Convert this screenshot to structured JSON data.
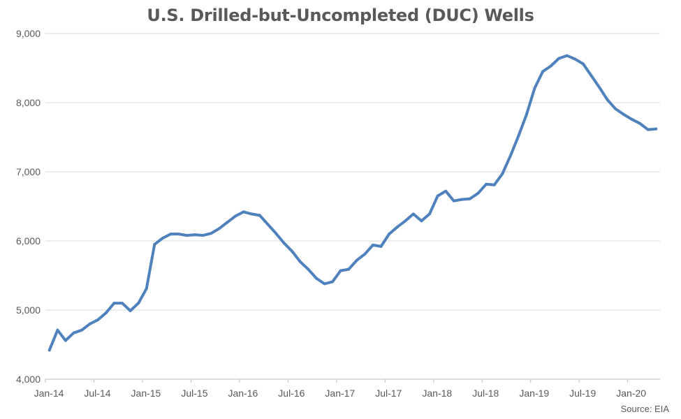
{
  "chart_data": {
    "type": "line",
    "title": "U.S. Drilled-but-Uncompleted (DUC) Wells",
    "source": "Source: EIA",
    "ylim": [
      4000,
      9000
    ],
    "y_ticks": [
      4000,
      5000,
      6000,
      7000,
      8000,
      9000
    ],
    "y_tick_labels": [
      "4,000",
      "5,000",
      "6,000",
      "7,000",
      "8,000",
      "9,000"
    ],
    "x_tick_labels": [
      "Jan-14",
      "Jul-14",
      "Jan-15",
      "Jul-15",
      "Jan-16",
      "Jul-16",
      "Jan-17",
      "Jul-17",
      "Jan-18",
      "Jul-18",
      "Jan-19",
      "Jul-19",
      "Jan-20"
    ],
    "x_tick_every_months": 6,
    "grid": "horizontal",
    "line_color": "#4f81bd",
    "grid_color": "#d9d9d9",
    "axis_color": "#bfbfbf",
    "x": [
      "2014-01",
      "2014-02",
      "2014-03",
      "2014-04",
      "2014-05",
      "2014-06",
      "2014-07",
      "2014-08",
      "2014-09",
      "2014-10",
      "2014-11",
      "2014-12",
      "2015-01",
      "2015-02",
      "2015-03",
      "2015-04",
      "2015-05",
      "2015-06",
      "2015-07",
      "2015-08",
      "2015-09",
      "2015-10",
      "2015-11",
      "2015-12",
      "2016-01",
      "2016-02",
      "2016-03",
      "2016-04",
      "2016-05",
      "2016-06",
      "2016-07",
      "2016-08",
      "2016-09",
      "2016-10",
      "2016-11",
      "2016-12",
      "2017-01",
      "2017-02",
      "2017-03",
      "2017-04",
      "2017-05",
      "2017-06",
      "2017-07",
      "2017-08",
      "2017-09",
      "2017-10",
      "2017-11",
      "2017-12",
      "2018-01",
      "2018-02",
      "2018-03",
      "2018-04",
      "2018-05",
      "2018-06",
      "2018-07",
      "2018-08",
      "2018-09",
      "2018-10",
      "2018-11",
      "2018-12",
      "2019-01",
      "2019-02",
      "2019-03",
      "2019-04",
      "2019-05",
      "2019-06",
      "2019-07",
      "2019-08",
      "2019-09",
      "2019-10",
      "2019-11",
      "2019-12",
      "2020-01",
      "2020-02",
      "2020-03",
      "2020-04"
    ],
    "series": [
      {
        "values": [
          4420,
          4710,
          4560,
          4670,
          4710,
          4800,
          4860,
          4960,
          5100,
          5100,
          4990,
          5100,
          5310,
          5950,
          6040,
          6100,
          6100,
          6080,
          6090,
          6080,
          6110,
          6180,
          6270,
          6360,
          6420,
          6390,
          6370,
          6240,
          6110,
          5970,
          5850,
          5700,
          5590,
          5460,
          5380,
          5410,
          5570,
          5590,
          5720,
          5810,
          5940,
          5920,
          6100,
          6200,
          6290,
          6390,
          6290,
          6390,
          6650,
          6720,
          6580,
          6600,
          6610,
          6690,
          6820,
          6810,
          6970,
          7230,
          7520,
          7830,
          8210,
          8450,
          8530,
          8640,
          8680,
          8630,
          8560,
          8390,
          8220,
          8040,
          7910,
          7830,
          7760,
          7700,
          7610,
          7620
        ]
      }
    ]
  }
}
